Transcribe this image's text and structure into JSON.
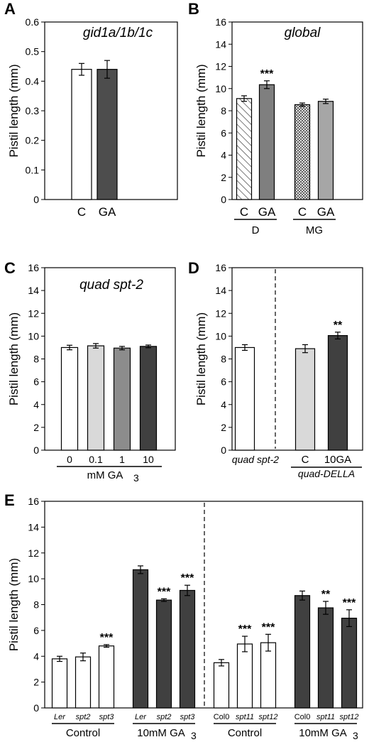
{
  "chart_data": [
    {
      "panel": "A",
      "type": "bar",
      "title": "gid1a/1b/1c",
      "ylabel": "Pistil length (mm)",
      "ylim": [
        0,
        0.6
      ],
      "yticks": [
        "0",
        "0.1",
        "0.2",
        "0.3",
        "0.4",
        "0.5",
        "0.6"
      ],
      "categories": [
        "C",
        "GA"
      ],
      "values": [
        0.44,
        0.44
      ],
      "errors": [
        0.02,
        0.03
      ],
      "colors": [
        "#ffffff",
        "#4d4d4d"
      ],
      "significance": [
        "",
        ""
      ]
    },
    {
      "panel": "B",
      "type": "bar",
      "title": "global",
      "ylabel": "Pistil length (mm)",
      "ylim": [
        0,
        16
      ],
      "yticks": [
        "0",
        "2",
        "4",
        "6",
        "8",
        "10",
        "12",
        "14",
        "16"
      ],
      "categories": [
        "C",
        "GA",
        "C",
        "GA"
      ],
      "values": [
        9.1,
        10.35,
        8.55,
        8.85
      ],
      "errors": [
        0.25,
        0.35,
        0.15,
        0.2
      ],
      "colors": [
        "hatch",
        "#7f7f7f",
        "crosshatch",
        "#a6a6a6"
      ],
      "significance": [
        "",
        "***",
        "",
        ""
      ],
      "groups": [
        {
          "label": "D"
        },
        {
          "label": "MG"
        }
      ]
    },
    {
      "panel": "C",
      "type": "bar",
      "title": "quad spt-2",
      "ylabel": "Pistil length (mm)",
      "ylim": [
        0,
        16
      ],
      "yticks": [
        "0",
        "2",
        "4",
        "6",
        "8",
        "10",
        "12",
        "14",
        "16"
      ],
      "categories": [
        "0",
        "0.1",
        "1",
        "10"
      ],
      "values": [
        9.0,
        9.15,
        8.95,
        9.1
      ],
      "errors": [
        0.2,
        0.2,
        0.15,
        0.12
      ],
      "colors": [
        "#ffffff",
        "#d9d9d9",
        "#8c8c8c",
        "#404040"
      ],
      "significance": [
        "",
        "",
        "",
        ""
      ],
      "xlabel": "mM GA",
      "xlabel_sub": "3"
    },
    {
      "panel": "D",
      "type": "bar",
      "title": "",
      "ylabel": "Pistil length (mm)",
      "ylim": [
        0,
        16
      ],
      "yticks": [
        "0",
        "2",
        "4",
        "6",
        "8",
        "10",
        "12",
        "14",
        "16"
      ],
      "categories": [
        "",
        "C",
        "10GA"
      ],
      "values": [
        9.0,
        8.9,
        10.05
      ],
      "errors": [
        0.25,
        0.35,
        0.3
      ],
      "colors": [
        "#ffffff",
        "#d9d9d9",
        "#404040"
      ],
      "significance": [
        "",
        "",
        "**"
      ],
      "groups": [
        {
          "label": "quad spt-2"
        },
        {
          "label": "quad-DELLA"
        }
      ]
    },
    {
      "panel": "E",
      "type": "bar",
      "title": "",
      "ylabel": "Pistil length (mm)",
      "ylim": [
        0,
        16
      ],
      "yticks": [
        "0",
        "2",
        "4",
        "6",
        "8",
        "10",
        "12",
        "14",
        "16"
      ],
      "categories": [
        "Ler",
        "spt2",
        "spt3",
        "Ler",
        "spt2",
        "spt3",
        "Col0",
        "spt11",
        "spt12",
        "Col0",
        "spt11",
        "spt12"
      ],
      "values": [
        3.8,
        3.95,
        4.8,
        10.7,
        8.35,
        9.1,
        3.5,
        4.95,
        5.05,
        8.7,
        7.75,
        6.95
      ],
      "errors": [
        0.2,
        0.3,
        0.1,
        0.3,
        0.1,
        0.4,
        0.25,
        0.6,
        0.65,
        0.35,
        0.5,
        0.65
      ],
      "colors": [
        "#ffffff",
        "#ffffff",
        "#ffffff",
        "#404040",
        "#404040",
        "#404040",
        "#ffffff",
        "#ffffff",
        "#ffffff",
        "#404040",
        "#404040",
        "#404040"
      ],
      "significance": [
        "",
        "",
        "***",
        "",
        "***",
        "***",
        "",
        "***",
        "***",
        "",
        "**",
        "***"
      ],
      "groups": [
        {
          "label": "Control"
        },
        {
          "label": "10mM GA",
          "sub": "3"
        },
        {
          "label": "Control"
        },
        {
          "label": "10mM GA",
          "sub": "3"
        }
      ]
    }
  ]
}
